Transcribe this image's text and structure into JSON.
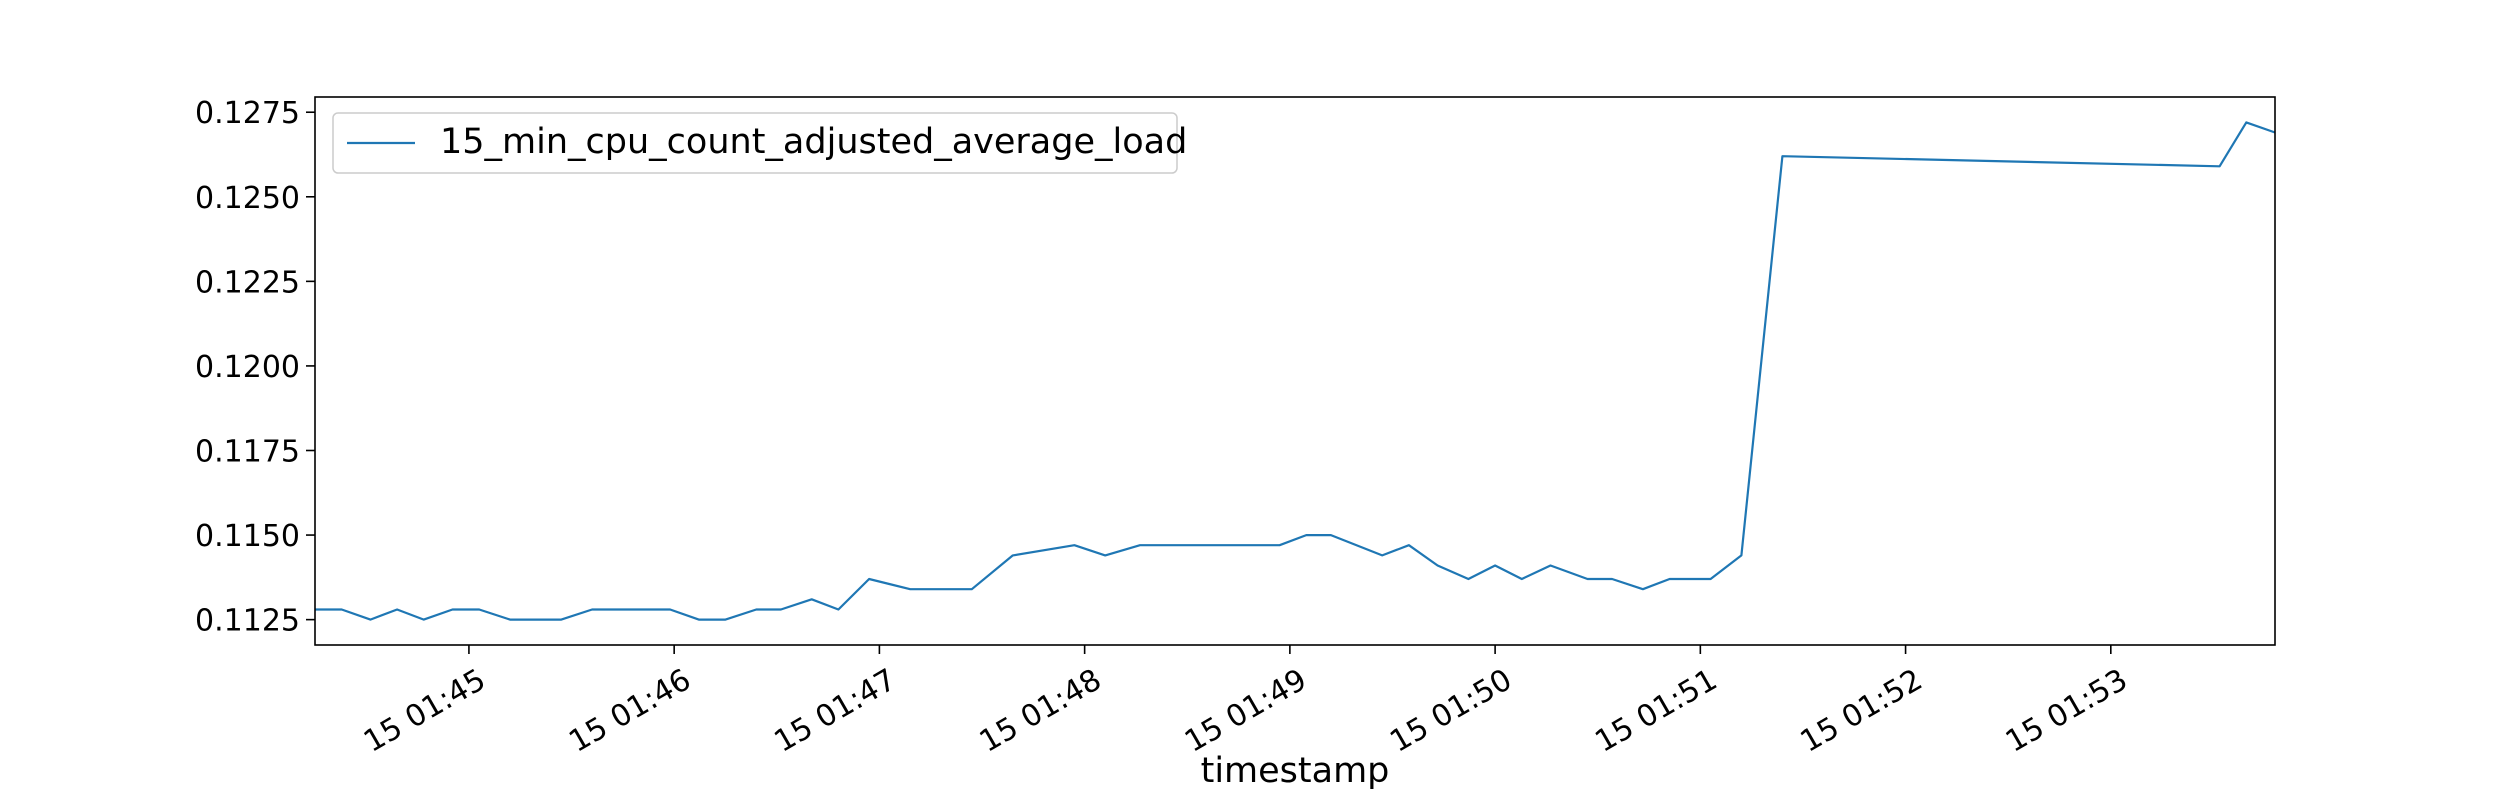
{
  "chart_data": {
    "type": "line",
    "xlabel": "timestamp",
    "ylabel": "",
    "title": "",
    "grid": false,
    "legend_position": "top-left",
    "color": "#1f77b4",
    "x_ticks": [
      {
        "x": 5.0,
        "label": "15 01:45"
      },
      {
        "x": 6.0,
        "label": "15 01:46"
      },
      {
        "x": 7.0,
        "label": "15 01:47"
      },
      {
        "x": 8.0,
        "label": "15 01:48"
      },
      {
        "x": 9.0,
        "label": "15 01:49"
      },
      {
        "x": 10.0,
        "label": "15 01:50"
      },
      {
        "x": 11.0,
        "label": "15 01:51"
      },
      {
        "x": 12.0,
        "label": "15 01:52"
      },
      {
        "x": 13.0,
        "label": "15 01:53"
      }
    ],
    "y_ticks": [
      {
        "y": 0.1125,
        "label": "0.1125"
      },
      {
        "y": 0.115,
        "label": "0.1150"
      },
      {
        "y": 0.1175,
        "label": "0.1175"
      },
      {
        "y": 0.12,
        "label": "0.1200"
      },
      {
        "y": 0.1225,
        "label": "0.1225"
      },
      {
        "y": 0.125,
        "label": "0.1250"
      },
      {
        "y": 0.1275,
        "label": "0.1275"
      }
    ],
    "xlim": [
      4.25,
      13.8
    ],
    "ylim": [
      0.11175,
      0.12795
    ],
    "series": [
      {
        "name": "15_min_cpu_count_adjusted_average_load",
        "x": [
          4.25,
          4.38,
          4.52,
          4.65,
          4.78,
          4.92,
          5.05,
          5.2,
          5.45,
          5.6,
          5.98,
          6.12,
          6.25,
          6.4,
          6.52,
          6.67,
          6.8,
          6.95,
          7.15,
          7.45,
          7.65,
          7.95,
          8.1,
          8.27,
          8.45,
          8.55,
          8.95,
          9.08,
          9.2,
          9.45,
          9.58,
          9.72,
          9.87,
          10.0,
          10.13,
          10.27,
          10.45,
          10.57,
          10.72,
          10.85,
          11.05,
          11.2,
          11.4,
          13.53,
          13.66,
          13.8
        ],
        "y": [
          0.1128,
          0.1128,
          0.1125,
          0.1128,
          0.1125,
          0.1128,
          0.1128,
          0.1125,
          0.1125,
          0.1128,
          0.1128,
          0.1125,
          0.1125,
          0.1128,
          0.1128,
          0.1131,
          0.1128,
          0.1137,
          0.1134,
          0.1134,
          0.1144,
          0.1147,
          0.1144,
          0.1147,
          0.1147,
          0.1147,
          0.1147,
          0.115,
          0.115,
          0.1144,
          0.1147,
          0.1141,
          0.1137,
          0.1141,
          0.1137,
          0.1141,
          0.1137,
          0.1137,
          0.1134,
          0.1137,
          0.1137,
          0.1144,
          0.1262,
          0.1259,
          0.1272,
          0.1269
        ]
      }
    ]
  }
}
